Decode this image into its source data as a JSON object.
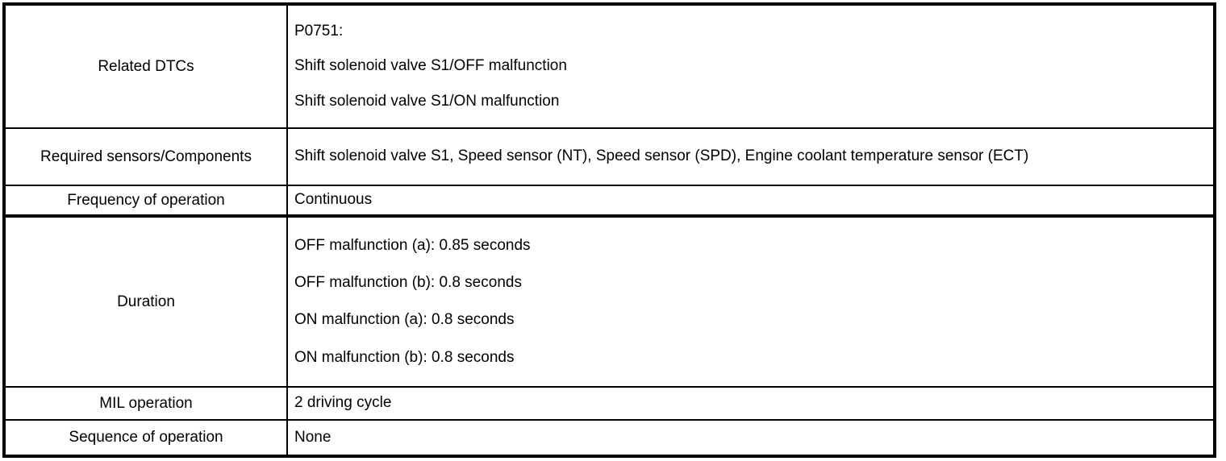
{
  "colors": {
    "border": "#000000",
    "text": "#000000",
    "background": "#ffffff"
  },
  "table": {
    "rows": [
      {
        "label": "Related DTCs",
        "value_lines": [
          "P0751:",
          "Shift solenoid valve S1/OFF malfunction",
          "Shift solenoid valve S1/ON malfunction"
        ]
      },
      {
        "label": "Required sensors/Components",
        "value_lines": [
          "Shift solenoid valve S1, Speed sensor (NT), Speed sensor (SPD), Engine coolant temperature sensor (ECT)"
        ]
      },
      {
        "label": "Frequency of operation",
        "value_lines": [
          "Continuous"
        ]
      },
      {
        "label": "Duration",
        "value_lines": [
          "OFF malfunction (a): 0.85 seconds",
          "OFF malfunction (b): 0.8 seconds",
          "ON malfunction (a): 0.8 seconds",
          "ON malfunction (b): 0.8 seconds"
        ]
      },
      {
        "label": "MIL operation",
        "value_lines": [
          "2 driving cycle"
        ]
      },
      {
        "label": "Sequence of operation",
        "value_lines": [
          "None"
        ]
      }
    ]
  }
}
